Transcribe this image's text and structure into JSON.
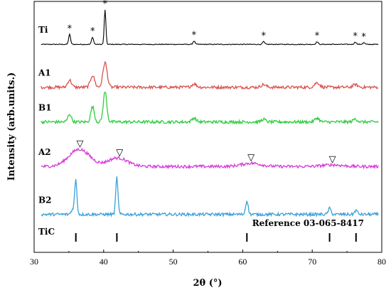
{
  "chart_data": {
    "type": "line",
    "title": "",
    "xlabel": "2θ (°)",
    "ylabel": "Intensity (arb.units.)",
    "xlim": [
      30,
      80
    ],
    "xticks": [
      30,
      40,
      50,
      60,
      70,
      80
    ],
    "y_ticks_shown": false,
    "grid": false,
    "legend": "none (curves labelled at left)",
    "colors": {
      "Ti": "#000000",
      "A1": "#d9534f",
      "B1": "#2ecc40",
      "A2": "#d63ad9",
      "B2": "#3aa0d6",
      "TiC": "#000000"
    },
    "series": [
      {
        "name": "Ti",
        "baseline_offset": 6.3,
        "peaks": [
          {
            "x": 35.1,
            "h": 0.3,
            "w": 0.14
          },
          {
            "x": 38.4,
            "h": 0.22,
            "w": 0.14
          },
          {
            "x": 40.2,
            "h": 1.05,
            "w": 0.12
          },
          {
            "x": 53.0,
            "h": 0.1,
            "w": 0.15
          },
          {
            "x": 63.0,
            "h": 0.08,
            "w": 0.15
          },
          {
            "x": 70.7,
            "h": 0.08,
            "w": 0.15
          },
          {
            "x": 76.2,
            "h": 0.07,
            "w": 0.15
          },
          {
            "x": 77.4,
            "h": 0.05,
            "w": 0.15
          }
        ],
        "markers": [
          35.1,
          38.4,
          40.2,
          53.0,
          63.0,
          70.7,
          76.2,
          77.4
        ],
        "marker_symbol": "*"
      },
      {
        "name": "A1",
        "baseline_offset": 5.0,
        "peaks": [
          {
            "x": 35.1,
            "h": 0.22,
            "w": 0.28
          },
          {
            "x": 38.4,
            "h": 0.36,
            "w": 0.3
          },
          {
            "x": 40.2,
            "h": 0.75,
            "w": 0.3
          },
          {
            "x": 53.0,
            "h": 0.1,
            "w": 0.35
          },
          {
            "x": 63.0,
            "h": 0.08,
            "w": 0.35
          },
          {
            "x": 70.7,
            "h": 0.14,
            "w": 0.35
          },
          {
            "x": 76.2,
            "h": 0.08,
            "w": 0.35
          }
        ]
      },
      {
        "name": "B1",
        "baseline_offset": 3.95,
        "peaks": [
          {
            "x": 35.1,
            "h": 0.24,
            "w": 0.25
          },
          {
            "x": 38.4,
            "h": 0.46,
            "w": 0.25
          },
          {
            "x": 40.2,
            "h": 0.92,
            "w": 0.25
          },
          {
            "x": 53.0,
            "h": 0.12,
            "w": 0.3
          },
          {
            "x": 63.0,
            "h": 0.08,
            "w": 0.3
          },
          {
            "x": 70.7,
            "h": 0.12,
            "w": 0.3
          },
          {
            "x": 76.2,
            "h": 0.09,
            "w": 0.3
          }
        ]
      },
      {
        "name": "A2",
        "baseline_offset": 2.6,
        "peaks": [
          {
            "x": 36.5,
            "h": 0.52,
            "w": 1.5
          },
          {
            "x": 42.0,
            "h": 0.26,
            "w": 1.4
          },
          {
            "x": 61.2,
            "h": 0.1,
            "w": 1.4
          },
          {
            "x": 72.9,
            "h": 0.05,
            "w": 1.4
          }
        ],
        "markers": [
          36.6,
          42.3,
          61.2,
          72.9
        ],
        "marker_symbol": "▽"
      },
      {
        "name": "B2",
        "baseline_offset": 1.15,
        "peaks": [
          {
            "x": 35.6,
            "h": 0.16,
            "w": 0.25
          },
          {
            "x": 36.0,
            "h": 1.0,
            "w": 0.16
          },
          {
            "x": 41.9,
            "h": 1.12,
            "w": 0.16
          },
          {
            "x": 60.6,
            "h": 0.42,
            "w": 0.18
          },
          {
            "x": 72.5,
            "h": 0.18,
            "w": 0.2
          },
          {
            "x": 76.3,
            "h": 0.12,
            "w": 0.2
          }
        ]
      }
    ],
    "reference": {
      "name": "TiC",
      "label": "Reference 03-065-8417",
      "lines": [
        36.0,
        41.9,
        60.6,
        72.5,
        76.3
      ]
    }
  }
}
